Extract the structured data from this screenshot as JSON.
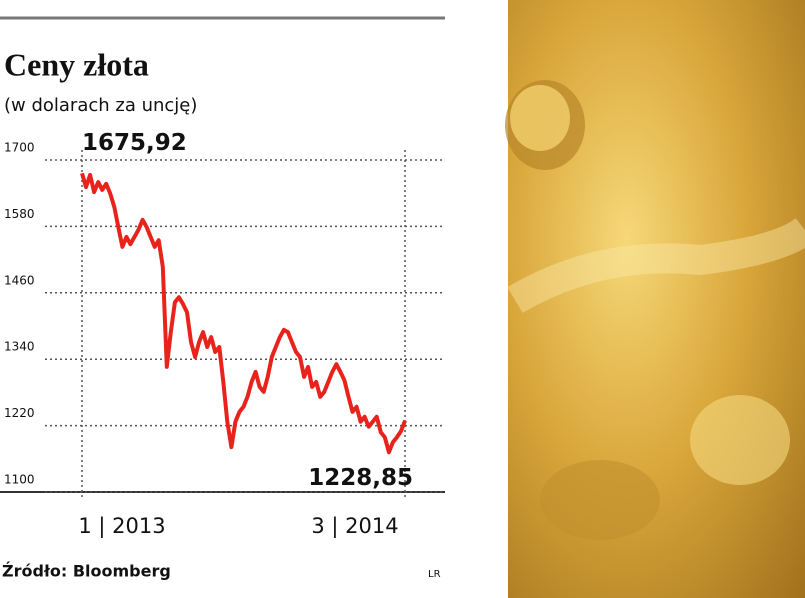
{
  "chart_data": {
    "type": "line",
    "title": "Ceny złota",
    "subtitle": "(w dolarach za uncję)",
    "source": "Źródło: Bloomberg",
    "credit": "LR",
    "categories": [
      "1 | 2013",
      null,
      null,
      null,
      null,
      null,
      null,
      null,
      null,
      null,
      null,
      null,
      null,
      null,
      null,
      null,
      null,
      null,
      null,
      null,
      null,
      null,
      null,
      null,
      null,
      null,
      null,
      null,
      null,
      null,
      null,
      null,
      null,
      null,
      null,
      null,
      null,
      null,
      null,
      null,
      null,
      null,
      null,
      null,
      null,
      null,
      null,
      null,
      null,
      null,
      null,
      null,
      null,
      null,
      null,
      null,
      null,
      null,
      null,
      null,
      null,
      null,
      null,
      null,
      null,
      null,
      null,
      null,
      null,
      null,
      null,
      null,
      null,
      null,
      null,
      null,
      null,
      null,
      null,
      null,
      "3 | 2014"
    ],
    "series": [
      {
        "color": "#e8231b",
        "values": [
          1675.92,
          1651,
          1673,
          1642,
          1660,
          1646,
          1657,
          1639,
          1615,
          1579,
          1543,
          1561,
          1548,
          1561,
          1574,
          1592,
          1579,
          1561,
          1543,
          1555,
          1507,
          1326,
          1389,
          1443,
          1452,
          1440,
          1425,
          1371,
          1344,
          1371,
          1389,
          1362,
          1380,
          1353,
          1362,
          1299,
          1227,
          1181,
          1227,
          1245,
          1254,
          1272,
          1299,
          1317,
          1290,
          1281,
          1308,
          1344,
          1362,
          1380,
          1393,
          1389,
          1371,
          1353,
          1344,
          1308,
          1326,
          1290,
          1299,
          1272,
          1281,
          1299,
          1317,
          1331,
          1317,
          1302,
          1272,
          1245,
          1254,
          1227,
          1236,
          1218,
          1227,
          1236,
          1208,
          1199,
          1172,
          1190,
          1199,
          1210,
          1228.85
        ],
        "value_labels": [
          "1675,92",
          null,
          null,
          null,
          null,
          null,
          null,
          null,
          null,
          null,
          null,
          null,
          null,
          null,
          null,
          null,
          null,
          null,
          null,
          null,
          null,
          null,
          null,
          null,
          null,
          null,
          null,
          null,
          null,
          null,
          null,
          null,
          null,
          null,
          null,
          null,
          null,
          null,
          null,
          null,
          null,
          null,
          null,
          null,
          null,
          null,
          null,
          null,
          null,
          null,
          null,
          null,
          null,
          null,
          null,
          null,
          null,
          null,
          null,
          null,
          null,
          null,
          null,
          null,
          null,
          null,
          null,
          null,
          null,
          null,
          null,
          null,
          null,
          null,
          null,
          null,
          null,
          null,
          null,
          null,
          "1228,85"
        ]
      }
    ],
    "ylim": [
      1100,
      1700
    ],
    "yticks": [
      1100,
      1220,
      1340,
      1460,
      1580,
      1700
    ],
    "grid": true
  }
}
